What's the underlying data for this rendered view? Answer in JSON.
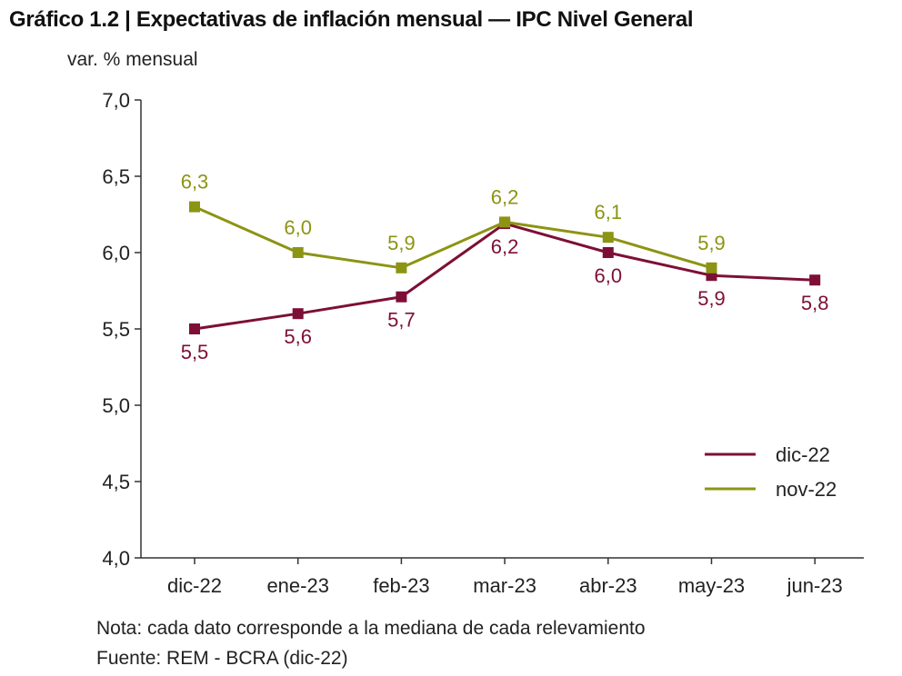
{
  "title": "Gráfico 1.2 | Expectativas de inflación mensual — IPC Nivel General",
  "note": "Nota: cada dato corresponde a la mediana de cada relevamiento",
  "source": "Fuente: REM - BCRA (dic-22)",
  "chart_data": {
    "type": "line",
    "ylabel": "var. % mensual",
    "ylim": [
      4.0,
      7.0
    ],
    "yticks": [
      4.0,
      4.5,
      5.0,
      5.5,
      6.0,
      6.5,
      7.0
    ],
    "ytick_labels": [
      "4,0",
      "4,5",
      "5,0",
      "5,5",
      "6,0",
      "6,5",
      "7,0"
    ],
    "categories": [
      "dic-22",
      "ene-23",
      "feb-23",
      "mar-23",
      "abr-23",
      "may-23",
      "jun-23"
    ],
    "legend_position": "bottom-right",
    "grid": false,
    "series": [
      {
        "name": "dic-22",
        "color": "#7d0f37",
        "values": [
          5.5,
          5.6,
          5.71,
          6.19,
          6.0,
          5.85,
          5.82
        ],
        "labels": [
          "5,5",
          "5,6",
          "5,7",
          "6,2",
          "6,0",
          "5,9",
          "5,8"
        ],
        "label_position": "below"
      },
      {
        "name": "nov-22",
        "color": "#8c9413",
        "values": [
          6.3,
          6.0,
          5.9,
          6.2,
          6.1,
          5.9,
          null
        ],
        "labels": [
          "6,3",
          "6,0",
          "5,9",
          "6,2",
          "6,1",
          "5,9",
          null
        ],
        "label_position": "above"
      }
    ]
  }
}
